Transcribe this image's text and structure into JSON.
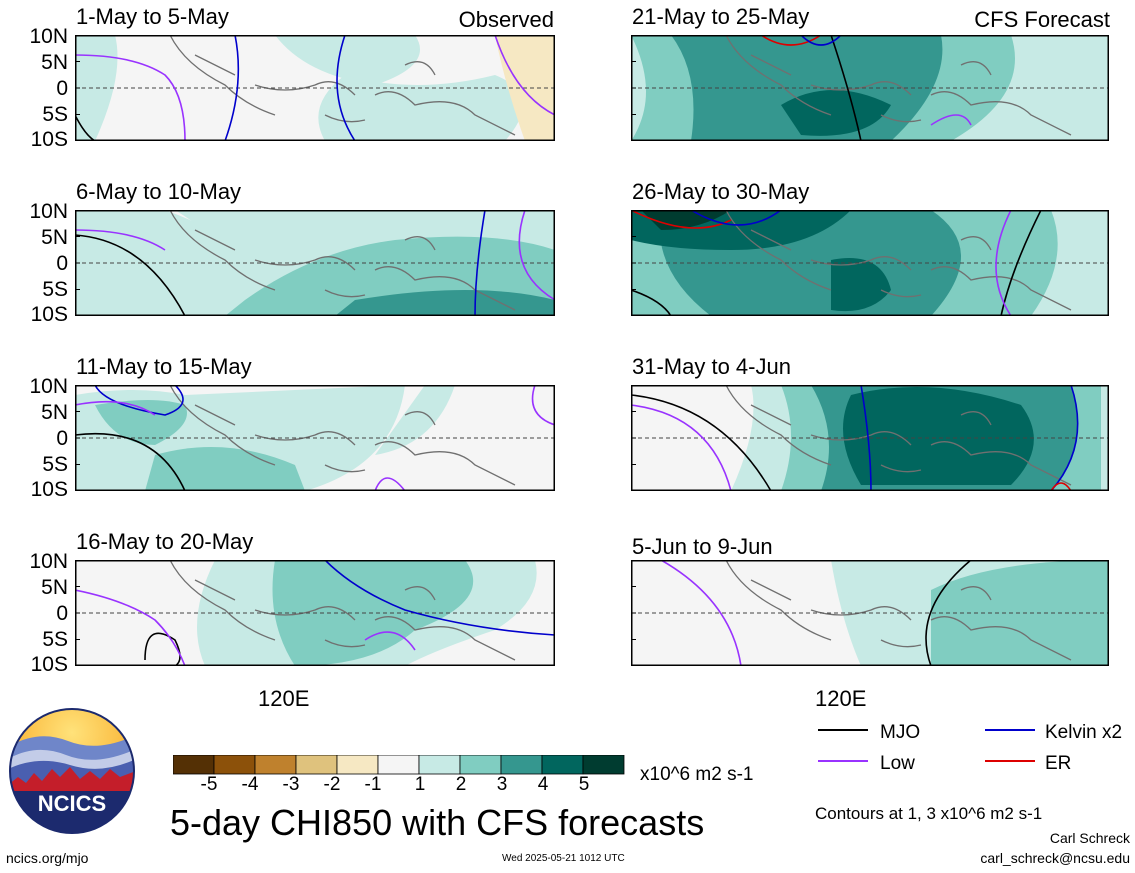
{
  "titles": {
    "main": "5-day CHI850 with CFS forecasts",
    "observed": "Observed",
    "forecast": "CFS Forecast"
  },
  "chart_data": {
    "type": "heatmap",
    "variable": "CHI850",
    "unit": "x10^6 m2 s-1",
    "lat_ticks": [
      "10N",
      "5N",
      "0",
      "5S",
      "10S"
    ],
    "lon_tick": "120E",
    "panels": [
      {
        "id": "p1",
        "period": "1-May to 5-May",
        "kind": "observed",
        "column": "left",
        "row": 0,
        "anomaly": "weak-positive-center",
        "level": 1
      },
      {
        "id": "p2",
        "period": "6-May to 10-May",
        "kind": "observed",
        "column": "left",
        "row": 1,
        "anomaly": "positive-east",
        "level": 2
      },
      {
        "id": "p3",
        "period": "11-May to 15-May",
        "kind": "observed",
        "column": "left",
        "row": 2,
        "anomaly": "weak-positive",
        "level": 1
      },
      {
        "id": "p4",
        "period": "16-May to 20-May",
        "kind": "observed",
        "column": "left",
        "row": 3,
        "anomaly": "positive-center",
        "level": 2
      },
      {
        "id": "p5",
        "period": "21-May to 25-May",
        "kind": "forecast",
        "column": "right",
        "row": 0,
        "anomaly": "positive-center",
        "level": 3
      },
      {
        "id": "p6",
        "period": "26-May to 30-May",
        "kind": "forecast",
        "column": "right",
        "row": 1,
        "anomaly": "strong-positive",
        "level": 4
      },
      {
        "id": "p7",
        "period": "31-May to 4-Jun",
        "kind": "forecast",
        "column": "right",
        "row": 2,
        "anomaly": "strong-positive-east",
        "level": 5
      },
      {
        "id": "p8",
        "period": "5-Jun to 9-Jun",
        "kind": "forecast",
        "column": "right",
        "row": 3,
        "anomaly": "positive-east",
        "level": 2
      }
    ],
    "colorbar": {
      "levels": [
        "-5",
        "-4",
        "-3",
        "-2",
        "-1",
        "1",
        "2",
        "3",
        "4",
        "5"
      ],
      "colors": [
        "#543005",
        "#8c510a",
        "#bf812d",
        "#dfc27d",
        "#f6e8c3",
        "#f5f5f5",
        "#c7eae5",
        "#80cdc1",
        "#35978f",
        "#01665e",
        "#003c30"
      ]
    },
    "legend": [
      {
        "label": "MJO",
        "color": "#000000"
      },
      {
        "label": "Kelvin x2",
        "color": "#0000cc"
      },
      {
        "label": "Low",
        "color": "#9933ff"
      },
      {
        "label": "ER",
        "color": "#dd0000"
      }
    ],
    "contours_note": "Contours at 1, 3 x10^6 m2 s-1"
  },
  "footer": {
    "logo_text": "NCICS",
    "url": "ncics.org/mjo",
    "timestamp": "Wed 2025-05-21 1012 UTC",
    "author": "Carl Schreck",
    "email": "carl_schreck@ncsu.edu"
  }
}
